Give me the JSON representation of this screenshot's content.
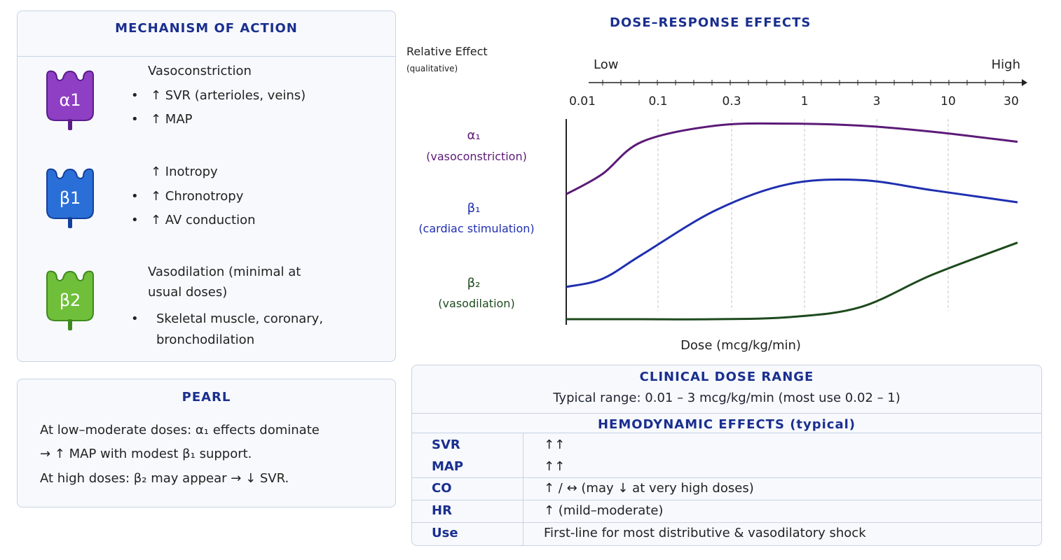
{
  "mechanism": {
    "title": "MECHANISM OF ACTION",
    "receptors": [
      {
        "symbol": "α1",
        "color": "#8e3fc4",
        "color_dark": "#5a1d8a",
        "lines": [
          "Vasoconstriction"
        ],
        "bullets": [
          "↑  SVR (arterioles, veins)",
          "↑  MAP"
        ]
      },
      {
        "symbol": "β1",
        "color": "#2a6fd8",
        "color_dark": "#13419a",
        "lines": [
          "↑  Inotropy"
        ],
        "bullets": [
          "↑  Chronotropy",
          "↑  AV conduction"
        ]
      },
      {
        "symbol": "β2",
        "color": "#6fbf3a",
        "color_dark": "#3f8a1f",
        "lines": [
          "Vasodilation (minimal at",
          "usual doses)"
        ],
        "bullets": [
          "Skeletal muscle, coronary,",
          "bronchodilation"
        ]
      }
    ]
  },
  "pearl": {
    "title": "PEARL",
    "lines": [
      "At low–moderate doses: α₁ effects dominate",
      "→ ↑ MAP with modest β₁ support.",
      "At high doses: β₂ may appear → ↓ SVR."
    ]
  },
  "chart_data": {
    "type": "line",
    "title": "DOSE–RESPONSE EFFECTS",
    "ylabel": "Relative Effect",
    "ylabel_sub": "(qualitative)",
    "xlabel": "Dose (mcg/kg/min)",
    "x_scale": "log",
    "scale_low": "Low",
    "scale_high": "High",
    "x_ticks": [
      "0.01",
      "0.1",
      "0.3",
      "1",
      "3",
      "10",
      "30"
    ],
    "x": [
      0.01,
      0.03,
      0.1,
      0.3,
      1,
      3,
      10,
      30
    ],
    "series": [
      {
        "name": "α₁",
        "sublabel": "(vasoconstriction)",
        "color": "#5c1a78",
        "values": [
          0.62,
          0.72,
          0.88,
          0.96,
          0.97,
          0.96,
          0.93,
          0.88
        ]
      },
      {
        "name": "β₁",
        "sublabel": "(cardiac stimulation)",
        "color": "#1f2fb0",
        "values": [
          0.16,
          0.2,
          0.32,
          0.54,
          0.67,
          0.69,
          0.64,
          0.58
        ]
      },
      {
        "name": "β₂",
        "sublabel": "(vasodilation)",
        "color": "#1e4a1e",
        "values": [
          0.0,
          0.0,
          0.0,
          0.0,
          0.01,
          0.06,
          0.22,
          0.38
        ]
      }
    ]
  },
  "clinical": {
    "title": "CLINICAL DOSE RANGE",
    "typical": "Typical range: 0.01 – 3 mcg/kg/min (most use 0.02 – 1)",
    "hemo_title": "HEMODYNAMIC EFFECTS (typical)",
    "rows": [
      {
        "k": "SVR",
        "v": "↑↑"
      },
      {
        "k": "MAP",
        "v": "↑↑"
      },
      {
        "k": "CO",
        "v": "↑  /  ↔  (may ↓ at very high doses)"
      },
      {
        "k": "HR",
        "v": "↑  (mild–moderate)"
      },
      {
        "k": "Use",
        "v": "First-line for most distributive & vasodilatory shock"
      }
    ]
  }
}
